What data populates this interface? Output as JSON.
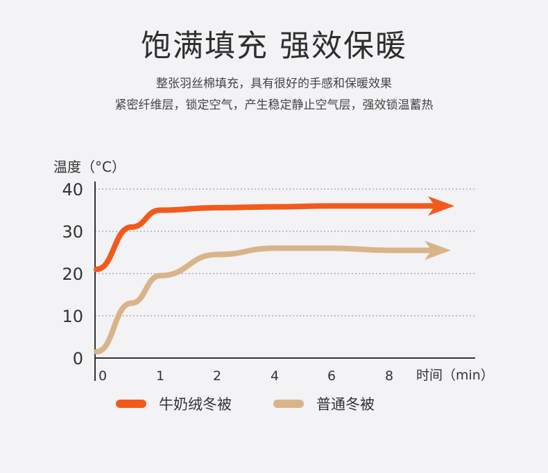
{
  "header": {
    "title": "饱满填充 强效保暖",
    "subtitle_line1": "整张羽丝棉填充，具有很好的手感和保暖效果",
    "subtitle_line2": "紧密纤维层，锁定空气，产生稳定静止空气层，强效锁温蓄热"
  },
  "chart_data": {
    "type": "line",
    "ylabel": "温度（°C）",
    "xlabel": "时间（min）",
    "x_tick_labels": [
      "0",
      "1",
      "2",
      "4",
      "6",
      "8"
    ],
    "y_ticks": [
      0,
      10,
      20,
      30,
      40
    ],
    "ylim": [
      0,
      40
    ],
    "grid": "horizontal dotted",
    "legend_position": "bottom",
    "series": [
      {
        "name": "牛奶绒冬被",
        "color": "#f25a1c",
        "points": [
          [
            0,
            21
          ],
          [
            0.5,
            31
          ],
          [
            1,
            35
          ],
          [
            2,
            35.6
          ],
          [
            4,
            35.8
          ],
          [
            6,
            36
          ],
          [
            8,
            36
          ]
        ]
      },
      {
        "name": "普通冬被",
        "color": "#d9b48a",
        "points": [
          [
            0,
            1.5
          ],
          [
            0.5,
            13
          ],
          [
            1,
            19.5
          ],
          [
            2,
            24.5
          ],
          [
            4,
            26
          ],
          [
            6,
            26
          ],
          [
            8,
            25.5
          ]
        ]
      }
    ]
  }
}
